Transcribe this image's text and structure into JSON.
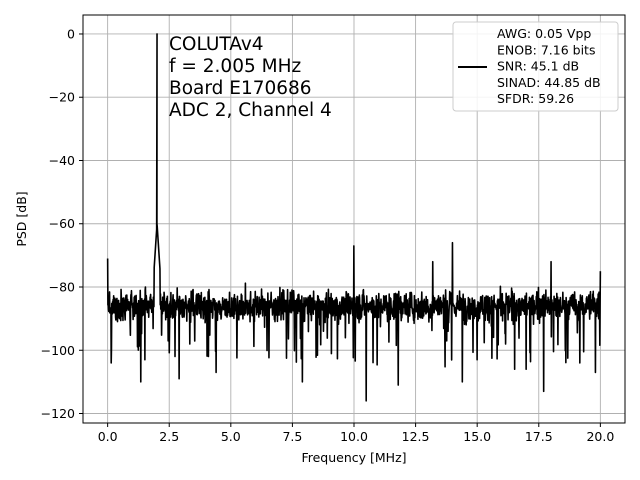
{
  "chart_data": {
    "type": "line",
    "title": "",
    "xlabel": "Frequency [MHz]",
    "ylabel": "PSD [dB]",
    "xlim": [
      -1.0,
      21.0
    ],
    "ylim": [
      -123,
      6
    ],
    "xticks": [
      0.0,
      2.5,
      5.0,
      7.5,
      10.0,
      12.5,
      15.0,
      17.5,
      20.0
    ],
    "xtick_labels": [
      "0.0",
      "2.5",
      "5.0",
      "7.5",
      "10.0",
      "12.5",
      "15.0",
      "17.5",
      "20.0"
    ],
    "yticks": [
      0,
      -20,
      -40,
      -60,
      -80,
      -100,
      -120
    ],
    "ytick_labels": [
      "0",
      "−20",
      "−40",
      "−60",
      "−80",
      "−100",
      "−120"
    ],
    "grid": true,
    "annotation_lines": [
      "COLUTAv4",
      "f = 2.005 MHz",
      "Board E170686",
      "ADC 2, Channel 4"
    ],
    "legend": {
      "placement": "top-right",
      "lines": [
        "AWG: 0.05 Vpp",
        "ENOB: 7.16 bits",
        "SNR: 45.1 dB",
        "SINAD: 44.85 dB",
        "SFDR: 59.26"
      ]
    },
    "series": [
      {
        "color": "#000000",
        "signal_peak": {
          "x": 2.005,
          "y": 0
        },
        "noise_floor_mean": -86,
        "noise_floor_range": [
          -100,
          -74
        ],
        "notable_points": [
          {
            "x": 0.0,
            "y": -71
          },
          {
            "x": 0.15,
            "y": -104
          },
          {
            "x": 1.35,
            "y": -110
          },
          {
            "x": 2.0,
            "y": -60
          },
          {
            "x": 2.9,
            "y": -109
          },
          {
            "x": 4.4,
            "y": -107
          },
          {
            "x": 7.9,
            "y": -110
          },
          {
            "x": 10.0,
            "y": -67
          },
          {
            "x": 10.5,
            "y": -116
          },
          {
            "x": 11.8,
            "y": -111
          },
          {
            "x": 13.2,
            "y": -72
          },
          {
            "x": 14.0,
            "y": -66
          },
          {
            "x": 14.4,
            "y": -110
          },
          {
            "x": 17.7,
            "y": -113
          },
          {
            "x": 18.0,
            "y": -72
          },
          {
            "x": 19.8,
            "y": -107
          },
          {
            "x": 20.0,
            "y": -75
          }
        ]
      }
    ]
  }
}
